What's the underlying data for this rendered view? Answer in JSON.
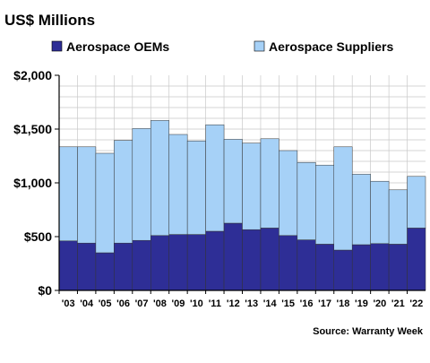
{
  "chart_data": {
    "type": "bar",
    "stacked": true,
    "title": "US$ Millions",
    "source": "Source: Warranty Week",
    "ylim": [
      0,
      2000
    ],
    "yticks": [
      0,
      500,
      1000,
      1500,
      2000
    ],
    "ytick_labels": [
      "$0",
      "$500",
      "$1,000",
      "$1,500",
      "$2,000"
    ],
    "categories": [
      "'03",
      "'04",
      "'05",
      "'06",
      "'07",
      "'08",
      "'09",
      "'10",
      "'11",
      "'12",
      "'13",
      "'14",
      "'15",
      "'16",
      "'17",
      "'18",
      "'19",
      "'20",
      "'21",
      "'22"
    ],
    "series": [
      {
        "name": "Aerospace OEMs",
        "color": "#2e2e96",
        "values": [
          460,
          440,
          350,
          440,
          465,
          510,
          520,
          520,
          550,
          625,
          565,
          580,
          510,
          470,
          430,
          375,
          425,
          435,
          430,
          580
        ]
      },
      {
        "name": "Aerospace Suppliers",
        "color": "#a6d1f7",
        "values": [
          875,
          895,
          925,
          955,
          1040,
          1070,
          930,
          870,
          990,
          780,
          805,
          830,
          790,
          720,
          735,
          960,
          655,
          580,
          505,
          480
        ]
      }
    ],
    "legend_position": "top",
    "grid": true
  }
}
